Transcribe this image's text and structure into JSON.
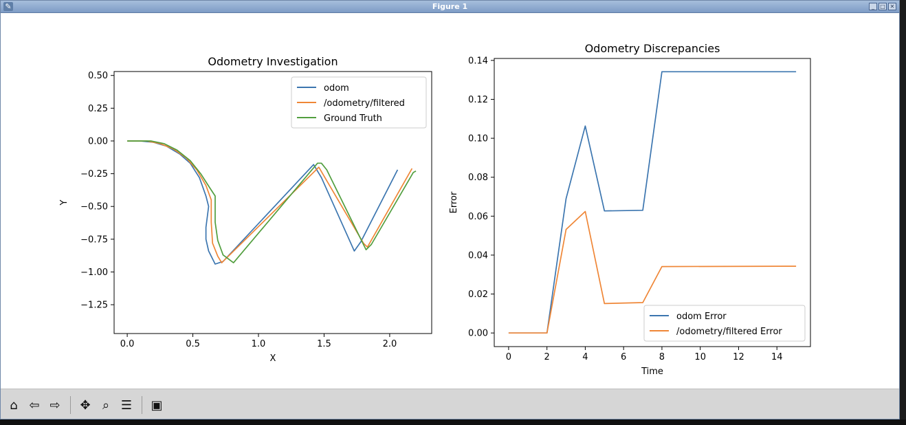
{
  "window": {
    "title": "Figure 1"
  },
  "window_controls": [
    "minimize-icon",
    "maximize-icon",
    "close-icon"
  ],
  "toolbar": {
    "buttons": [
      {
        "name": "home-button",
        "icon": "home-icon",
        "glyph": "⌂"
      },
      {
        "name": "back-button",
        "icon": "arrow-left-icon",
        "glyph": "⇦"
      },
      {
        "name": "forward-button",
        "icon": "arrow-right-icon",
        "glyph": "⇨"
      },
      {
        "name": "pan-button",
        "icon": "move-icon",
        "glyph": "✥"
      },
      {
        "name": "zoom-button",
        "icon": "magnifier-icon",
        "glyph": "⌕"
      },
      {
        "name": "configure-subplots-button",
        "icon": "sliders-icon",
        "glyph": "☰"
      },
      {
        "name": "save-button",
        "icon": "floppy-disk-icon",
        "glyph": "▣"
      }
    ]
  },
  "colors": {
    "blue": "#3b75af",
    "orange": "#ef8636",
    "green": "#519e3e"
  },
  "chart_data": [
    {
      "type": "line",
      "title": "Odometry Investigation",
      "xlabel": "X",
      "ylabel": "Y",
      "xlim": [
        -0.1,
        2.32
      ],
      "ylim": [
        -1.47,
        0.53
      ],
      "xticks": [
        0.0,
        0.5,
        1.0,
        1.5,
        2.0
      ],
      "xtick_labels": [
        "0.0",
        "0.5",
        "1.0",
        "1.5",
        "2.0"
      ],
      "yticks": [
        0.5,
        0.25,
        0.0,
        -0.25,
        -0.5,
        -0.75,
        -1.0,
        -1.25
      ],
      "ytick_labels": [
        "0.50",
        "0.25",
        "0.00",
        "−0.25",
        "−0.50",
        "−0.75",
        "−1.00",
        "−1.25"
      ],
      "legend": "top-right",
      "series": [
        {
          "name": "odom",
          "color": "#3b75af",
          "x": [
            0.0,
            0.1,
            0.2,
            0.3,
            0.4,
            0.48,
            0.55,
            0.6,
            0.62,
            0.6,
            0.6,
            0.62,
            0.67,
            0.73,
            1.42,
            1.48,
            1.73,
            1.78,
            2.06
          ],
          "y": [
            0.0,
            0.0,
            -0.01,
            -0.04,
            -0.1,
            -0.17,
            -0.28,
            -0.42,
            -0.5,
            -0.66,
            -0.75,
            -0.84,
            -0.94,
            -0.92,
            -0.18,
            -0.28,
            -0.84,
            -0.77,
            -0.22
          ]
        },
        {
          "name": "/odometry/filtered",
          "color": "#ef8636",
          "x": [
            0.0,
            0.15,
            0.25,
            0.35,
            0.45,
            0.53,
            0.6,
            0.64,
            0.64,
            0.65,
            0.69,
            0.72,
            1.46,
            1.8,
            1.83,
            2.17
          ],
          "y": [
            0.0,
            0.0,
            -0.02,
            -0.06,
            -0.13,
            -0.22,
            -0.34,
            -0.45,
            -0.62,
            -0.78,
            -0.88,
            -0.93,
            -0.2,
            -0.78,
            -0.81,
            -0.21
          ]
        },
        {
          "name": "Ground Truth",
          "color": "#519e3e",
          "x": [
            0.0,
            0.18,
            0.28,
            0.38,
            0.48,
            0.56,
            0.63,
            0.67,
            0.67,
            0.69,
            0.73,
            0.81,
            1.45,
            1.48,
            1.52,
            1.82,
            1.86,
            2.18,
            2.2
          ],
          "y": [
            0.0,
            0.0,
            -0.02,
            -0.07,
            -0.15,
            -0.25,
            -0.36,
            -0.42,
            -0.62,
            -0.76,
            -0.87,
            -0.93,
            -0.17,
            -0.17,
            -0.22,
            -0.83,
            -0.79,
            -0.24,
            -0.23
          ]
        }
      ]
    },
    {
      "type": "line",
      "title": "Odometry Discrepancies",
      "xlabel": "Time",
      "ylabel": "Error",
      "xlim": [
        -0.75,
        15.75
      ],
      "ylim": [
        -0.007,
        0.141
      ],
      "xticks": [
        0,
        2,
        4,
        6,
        8,
        10,
        12,
        14
      ],
      "xtick_labels": [
        "0",
        "2",
        "4",
        "6",
        "8",
        "10",
        "12",
        "14"
      ],
      "yticks": [
        0.0,
        0.02,
        0.04,
        0.06,
        0.08,
        0.1,
        0.12,
        0.14
      ],
      "ytick_labels": [
        "0.00",
        "0.02",
        "0.04",
        "0.06",
        "0.08",
        "0.10",
        "0.12",
        "0.14"
      ],
      "legend": "bottom-right",
      "series": [
        {
          "name": "odom Error",
          "color": "#3b75af",
          "x": [
            0,
            2,
            3,
            4,
            5,
            7,
            8,
            15
          ],
          "y": [
            0.0,
            0.0,
            0.069,
            0.1063,
            0.0627,
            0.063,
            0.1342,
            0.1342
          ]
        },
        {
          "name": "/odometry/filtered Error",
          "color": "#ef8636",
          "x": [
            0,
            2,
            3,
            4,
            5,
            7,
            8,
            15
          ],
          "y": [
            0.0,
            0.0,
            0.0532,
            0.0624,
            0.0151,
            0.0156,
            0.0341,
            0.0343
          ]
        }
      ]
    }
  ]
}
